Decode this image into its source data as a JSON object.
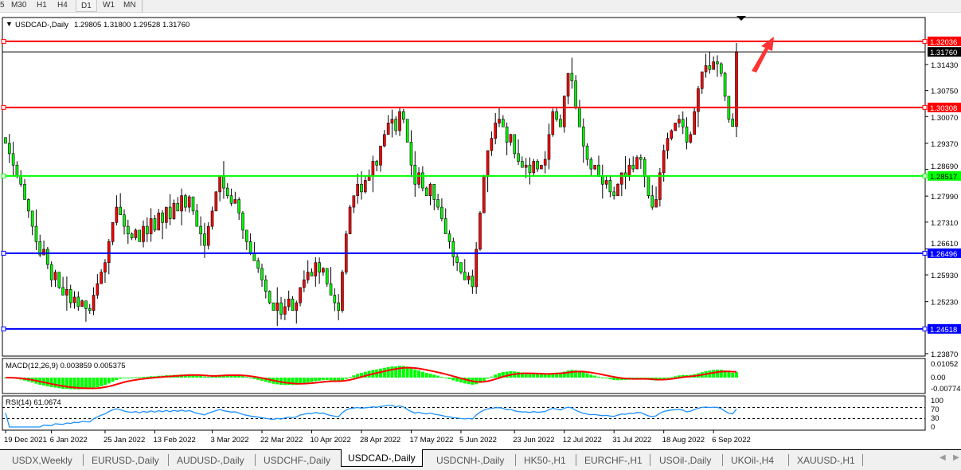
{
  "timeframes": {
    "items": [
      "5",
      "M30",
      "H1",
      "H4",
      "D1",
      "W1",
      "MN"
    ],
    "active": "D1"
  },
  "chart_data": {
    "type": "candlestick",
    "title": "USDCAD-,Daily",
    "ohlc_readout": "1.29805 1.31800 1.29528 1.31760",
    "colors": {
      "bull": "#ff0000",
      "bear": "#00ff00",
      "wick": "#000000"
    },
    "ylim": [
      1.2355,
      1.3265
    ],
    "y_ticks": [
      "1.31430",
      "1.30750",
      "1.30070",
      "1.29370",
      "1.28690",
      "1.27990",
      "1.27310",
      "1.26610",
      "1.25930",
      "1.25230",
      "1.23870"
    ],
    "x_ticks": [
      {
        "label": "19 Dec 2021",
        "i": 0
      },
      {
        "label": "6 Jan 2022",
        "i": 12
      },
      {
        "label": "25 Jan 2022",
        "i": 26
      },
      {
        "label": "13 Feb 2022",
        "i": 39
      },
      {
        "label": "3 Mar 2022",
        "i": 54
      },
      {
        "label": "22 Mar 2022",
        "i": 67
      },
      {
        "label": "10 Apr 2022",
        "i": 80
      },
      {
        "label": "28 Apr 2022",
        "i": 93
      },
      {
        "label": "17 May 2022",
        "i": 106
      },
      {
        "label": "5 Jun 2022",
        "i": 119
      },
      {
        "label": "23 Jun 2022",
        "i": 133
      },
      {
        "label": "12 Jul 2022",
        "i": 146
      },
      {
        "label": "31 Jul 2022",
        "i": 159
      },
      {
        "label": "18 Aug 2022",
        "i": 172
      },
      {
        "label": "6 Sep 2022",
        "i": 185
      }
    ],
    "closes": [
      1.2937,
      1.291,
      1.288,
      1.2853,
      1.283,
      1.279,
      1.276,
      1.272,
      1.268,
      1.2645,
      1.266,
      1.262,
      1.258,
      1.26,
      1.256,
      1.254,
      1.2555,
      1.252,
      1.2535,
      1.251,
      1.2525,
      1.2505,
      1.25,
      1.254,
      1.257,
      1.26,
      1.2625,
      1.268,
      1.273,
      1.277,
      1.275,
      1.272,
      1.27,
      1.269,
      1.271,
      1.268,
      1.272,
      1.27,
      1.274,
      1.271,
      1.2755,
      1.273,
      1.277,
      1.274,
      1.278,
      1.276,
      1.28,
      1.277,
      1.2797,
      1.276,
      1.272,
      1.27,
      1.267,
      1.272,
      1.276,
      1.281,
      1.2853,
      1.282,
      1.28,
      1.278,
      1.279,
      1.2755,
      1.271,
      1.268,
      1.265,
      1.263,
      1.261,
      1.258,
      1.255,
      1.252,
      1.25,
      1.252,
      1.249,
      1.251,
      1.253,
      1.25,
      1.252,
      1.256,
      1.258,
      1.26,
      1.259,
      1.2625,
      1.26,
      1.261,
      1.257,
      1.254,
      1.252,
      1.25,
      1.26,
      1.27,
      1.277,
      1.28,
      1.283,
      1.281,
      1.284,
      1.2853,
      1.289,
      1.288,
      1.293,
      1.296,
      1.299,
      1.3,
      1.297,
      1.302,
      1.3,
      1.294,
      1.288,
      1.283,
      1.286,
      1.282,
      1.28,
      1.283,
      1.279,
      1.277,
      1.274,
      1.27,
      1.268,
      1.264,
      1.2625,
      1.26,
      1.258,
      1.259,
      1.2562,
      1.266,
      1.2755,
      1.285,
      1.2918,
      1.295,
      1.299,
      1.3,
      1.298,
      1.294,
      1.296,
      1.291,
      1.289,
      1.2874,
      1.288,
      1.286,
      1.289,
      1.287,
      1.288,
      1.2895,
      1.296,
      1.302,
      1.3,
      1.298,
      1.306,
      1.312,
      1.31,
      1.303,
      1.298,
      1.293,
      1.2895,
      1.287,
      1.288,
      1.285,
      1.283,
      1.284,
      1.281,
      1.28,
      1.283,
      1.286,
      1.285,
      1.288,
      1.287,
      1.29,
      1.2895,
      1.285,
      1.28,
      1.277,
      1.279,
      1.286,
      1.2918,
      1.295,
      1.297,
      1.299,
      1.3,
      1.298,
      1.294,
      1.296,
      1.302,
      1.308,
      1.3124,
      1.314,
      1.313,
      1.315,
      1.3145,
      1.312,
      1.306,
      1.3,
      1.2981,
      1.3176
    ],
    "levels": [
      {
        "label": "1.32036",
        "value": 1.32036,
        "color": "#ff0000"
      },
      {
        "label": "1.31760",
        "value": 1.3176,
        "color": "#000000"
      },
      {
        "label": "1.30308",
        "value": 1.30308,
        "color": "#ff0000"
      },
      {
        "label": "1.28517",
        "value": 1.28517,
        "color": "#00ff00"
      },
      {
        "label": "1.26496",
        "value": 1.26496,
        "color": "#0000ff"
      },
      {
        "label": "1.24518",
        "value": 1.24518,
        "color": "#0000ff"
      }
    ],
    "macd": {
      "label": "MACD(12,26,9) 0.003859 0.005375",
      "ylim": [
        -0.00774,
        0.01052
      ],
      "ticks": [
        "0.01052",
        "0.00",
        "-0.00774"
      ]
    },
    "rsi": {
      "label": "RSI(14) 61.0674",
      "levels": [
        70,
        30
      ],
      "ticks": [
        "100",
        "70",
        "30",
        "0"
      ]
    }
  },
  "tabs": {
    "items": [
      "USDX,Weekly",
      "EURUSD-,Daily",
      "AUDUSD-,Daily",
      "USDCHF-,Daily",
      "USDCAD-,Daily",
      "USDCNH-,Daily",
      "HK50-,H1",
      "EURCHF-,H1",
      "USOil-,Daily",
      "UKOil-,H4",
      "XAUUSD-,H1"
    ],
    "active": "USDCAD-,Daily"
  }
}
